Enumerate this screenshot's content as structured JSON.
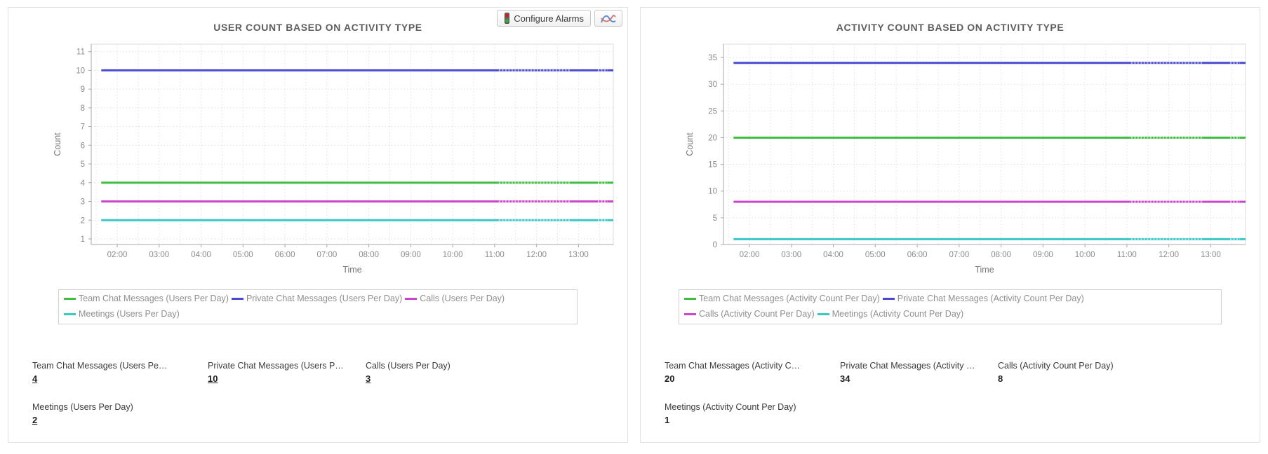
{
  "actions": {
    "configure_alarms_label": "Configure Alarms"
  },
  "colors": {
    "green": "#3fbf3f",
    "blue": "#4a4ad0",
    "magenta": "#cc44cc",
    "cyan": "#3cc7c7",
    "axis": "#a8a8a8",
    "grid": "#e0e0e0",
    "tick_text": "#8a8a8a",
    "axis_title": "#777777"
  },
  "chart_data": [
    {
      "type": "line",
      "title": "USER COUNT BASED ON ACTIVITY TYPE",
      "xlabel": "Time",
      "ylabel": "Count",
      "categories": [
        "02:00",
        "03:00",
        "04:00",
        "05:00",
        "06:00",
        "07:00",
        "08:00",
        "09:00",
        "10:00",
        "11:00",
        "12:00",
        "13:00"
      ],
      "yticks": [
        1,
        2,
        3,
        4,
        5,
        6,
        7,
        8,
        9,
        10,
        11
      ],
      "ylim": [
        0.7,
        11.4
      ],
      "grid": true,
      "legend_position": "bottom",
      "series": [
        {
          "name": "Team Chat Messages (Users Per Day)",
          "color": "#3fbf3f",
          "value": 4
        },
        {
          "name": "Private Chat Messages (Users Per Day)",
          "color": "#4a4ad0",
          "value": 10
        },
        {
          "name": "Calls (Users Per Day)",
          "color": "#cc44cc",
          "value": 3
        },
        {
          "name": "Meetings (Users Per Day)",
          "color": "#3cc7c7",
          "value": 2
        }
      ],
      "stats": [
        {
          "label": "Team Chat Messages (Users Pe…",
          "value": "4",
          "link": true
        },
        {
          "label": "Private Chat Messages (Users P…",
          "value": "10",
          "link": true
        },
        {
          "label": "Calls (Users Per Day)",
          "value": "3",
          "link": true
        },
        {
          "label": "Meetings (Users Per Day)",
          "value": "2",
          "link": true
        }
      ]
    },
    {
      "type": "line",
      "title": "ACTIVITY COUNT BASED ON ACTIVITY TYPE",
      "xlabel": "Time",
      "ylabel": "Count",
      "categories": [
        "02:00",
        "03:00",
        "04:00",
        "05:00",
        "06:00",
        "07:00",
        "08:00",
        "09:00",
        "10:00",
        "11:00",
        "12:00",
        "13:00"
      ],
      "yticks": [
        0,
        5,
        10,
        15,
        20,
        25,
        30,
        35
      ],
      "ylim": [
        0,
        37.5
      ],
      "grid": true,
      "legend_position": "bottom",
      "series": [
        {
          "name": "Team Chat Messages (Activity Count Per Day)",
          "color": "#3fbf3f",
          "value": 20
        },
        {
          "name": "Private Chat Messages (Activity Count Per Day)",
          "color": "#4a4ad0",
          "value": 34
        },
        {
          "name": "Calls (Activity Count Per Day)",
          "color": "#cc44cc",
          "value": 8
        },
        {
          "name": "Meetings (Activity Count Per Day)",
          "color": "#3cc7c7",
          "value": 1
        }
      ],
      "stats": [
        {
          "label": "Team Chat Messages (Activity C…",
          "value": "20",
          "link": false
        },
        {
          "label": "Private Chat Messages (Activity …",
          "value": "34",
          "link": false
        },
        {
          "label": "Calls (Activity Count Per Day)",
          "value": "8",
          "link": false
        },
        {
          "label": "Meetings (Activity Count Per Day)",
          "value": "1",
          "link": false
        }
      ]
    }
  ]
}
